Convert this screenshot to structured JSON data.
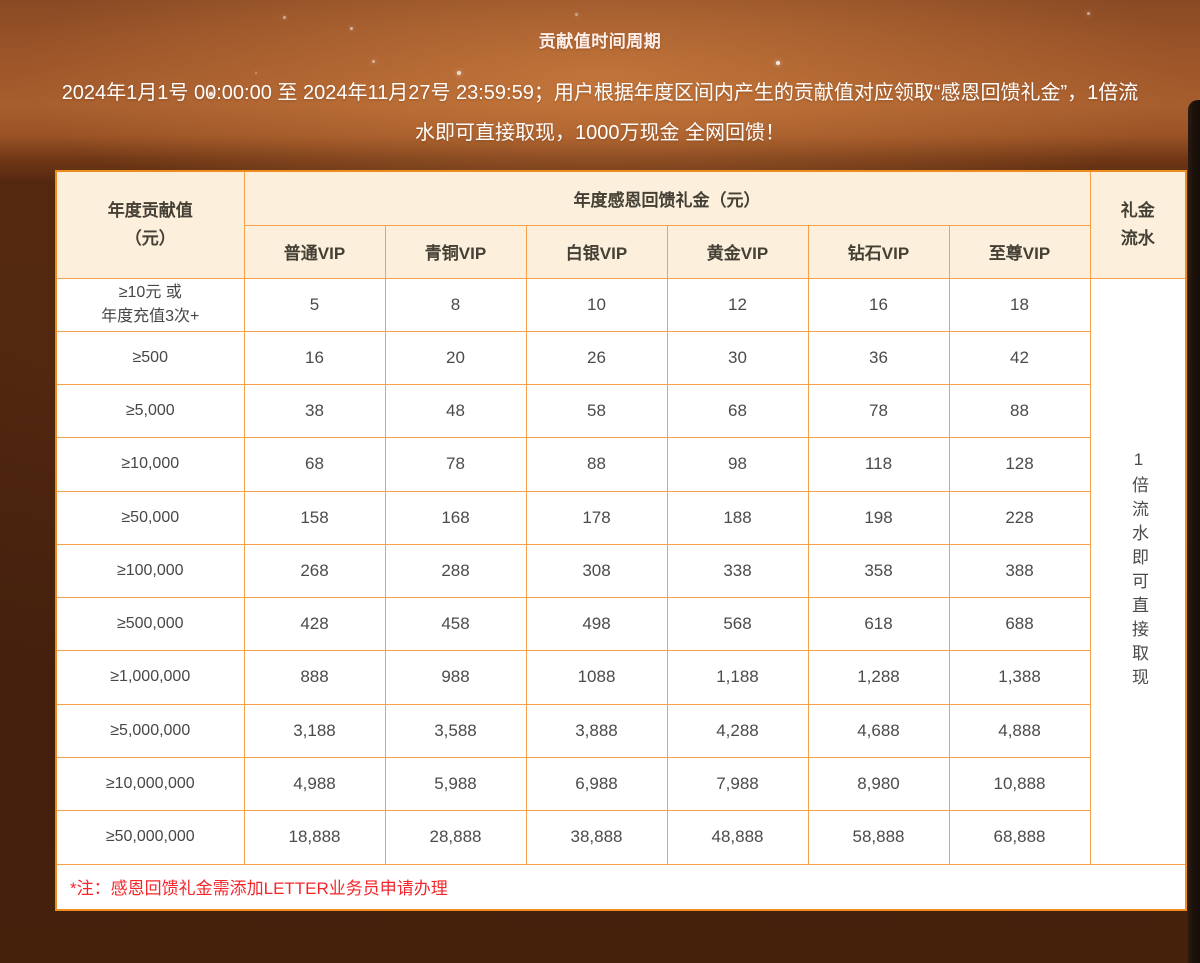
{
  "hero": {
    "title": "贡献值时间周期",
    "description": "2024年1月1号 00:00:00 至 2024年11月27号 23:59:59；用户根据年度区间内产生的贡献值对应领取“感恩回馈礼金”，1倍流水即可直接取现，1000万现金 全网回馈！"
  },
  "table": {
    "tier_header": "年度贡献值\n（元）",
    "span_header": "年度感恩回馈礼金（元）",
    "vip_levels": [
      "普通VIP",
      "青铜VIP",
      "白银VIP",
      "黄金VIP",
      "钻石VIP",
      "至尊VIP"
    ],
    "flow_header": "礼金\n流水",
    "flow_note": "1倍流水即可直接取现",
    "rows": [
      {
        "tier": "≥10元 或\n年度充值3次+",
        "values": [
          "5",
          "8",
          "10",
          "12",
          "16",
          "18"
        ]
      },
      {
        "tier": "≥500",
        "values": [
          "16",
          "20",
          "26",
          "30",
          "36",
          "42"
        ]
      },
      {
        "tier": "≥5,000",
        "values": [
          "38",
          "48",
          "58",
          "68",
          "78",
          "88"
        ]
      },
      {
        "tier": "≥10,000",
        "values": [
          "68",
          "78",
          "88",
          "98",
          "118",
          "128"
        ]
      },
      {
        "tier": "≥50,000",
        "values": [
          "158",
          "168",
          "178",
          "188",
          "198",
          "228"
        ]
      },
      {
        "tier": "≥100,000",
        "values": [
          "268",
          "288",
          "308",
          "338",
          "358",
          "388"
        ]
      },
      {
        "tier": "≥500,000",
        "values": [
          "428",
          "458",
          "498",
          "568",
          "618",
          "688"
        ]
      },
      {
        "tier": "≥1,000,000",
        "values": [
          "888",
          "988",
          "1088",
          "1,188",
          "1,288",
          "1,388"
        ]
      },
      {
        "tier": "≥5,000,000",
        "values": [
          "3,188",
          "3,588",
          "3,888",
          "4,288",
          "4,688",
          "4,888"
        ]
      },
      {
        "tier": "≥10,000,000",
        "values": [
          "4,988",
          "5,988",
          "6,988",
          "7,988",
          "8,980",
          "10,888"
        ]
      },
      {
        "tier": "≥50,000,000",
        "values": [
          "18,888",
          "28,888",
          "38,888",
          "48,888",
          "58,888",
          "68,888"
        ]
      }
    ],
    "footnote": "*注：感恩回馈礼金需添加LETTER业务员申请办理"
  },
  "colors": {
    "border": "#F6A04A",
    "outer_border": "#EE8C1E",
    "header_bg": "#FCEFDC",
    "cell_text": "#4B4B4B",
    "tier_text": "#474747",
    "note_red": "#F5262B",
    "page_dark": "#522810",
    "page_orange": "#A75E2E",
    "title_white": "#FFEFEA"
  }
}
